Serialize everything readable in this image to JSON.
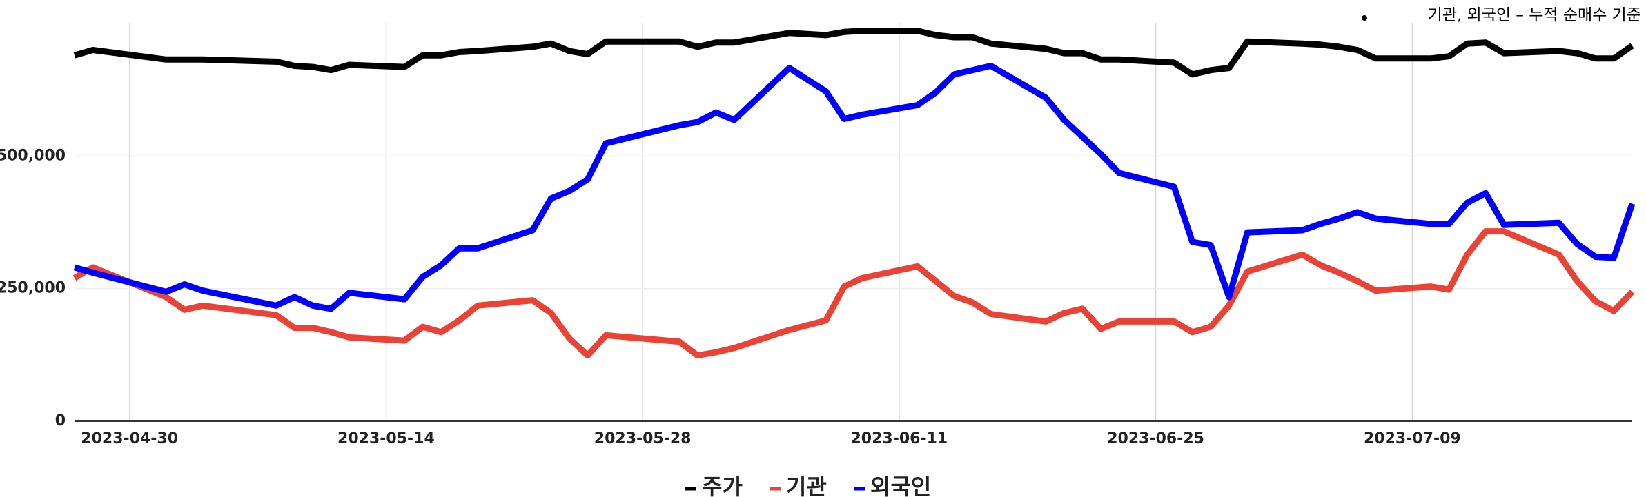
{
  "chart_data": {
    "type": "line",
    "note": "기관, 외국인 – 누적 순매수 기준",
    "x": [
      "2023-04-27",
      "2023-04-28",
      "2023-05-02",
      "2023-05-03",
      "2023-05-04",
      "2023-05-08",
      "2023-05-09",
      "2023-05-10",
      "2023-05-11",
      "2023-05-12",
      "2023-05-15",
      "2023-05-16",
      "2023-05-17",
      "2023-05-18",
      "2023-05-19",
      "2023-05-22",
      "2023-05-23",
      "2023-05-24",
      "2023-05-25",
      "2023-05-26",
      "2023-05-30",
      "2023-05-31",
      "2023-06-01",
      "2023-06-02",
      "2023-06-05",
      "2023-06-07",
      "2023-06-08",
      "2023-06-09",
      "2023-06-12",
      "2023-06-13",
      "2023-06-14",
      "2023-06-15",
      "2023-06-16",
      "2023-06-19",
      "2023-06-20",
      "2023-06-21",
      "2023-06-22",
      "2023-06-23",
      "2023-06-26",
      "2023-06-27",
      "2023-06-28",
      "2023-06-29",
      "2023-06-30",
      "2023-07-03",
      "2023-07-04",
      "2023-07-05",
      "2023-07-06",
      "2023-07-07",
      "2023-07-10",
      "2023-07-11",
      "2023-07-12",
      "2023-07-13",
      "2023-07-14",
      "2023-07-17",
      "2023-07-18",
      "2023-07-19",
      "2023-07-20",
      "2023-07-21"
    ],
    "series": [
      {
        "name": "주가",
        "color": "#000000",
        "values": [
          690000,
          700000,
          682000,
          682000,
          682000,
          678000,
          670000,
          668000,
          662000,
          672000,
          668000,
          690000,
          690000,
          696000,
          698000,
          706000,
          712000,
          698000,
          692000,
          716000,
          716000,
          706000,
          714000,
          714000,
          732000,
          728000,
          734000,
          736000,
          736000,
          728000,
          724000,
          724000,
          712000,
          702000,
          694000,
          694000,
          682000,
          682000,
          676000,
          654000,
          662000,
          666000,
          716000,
          712000,
          710000,
          706000,
          700000,
          684000,
          684000,
          688000,
          712000,
          714000,
          694000,
          698000,
          694000,
          684000,
          684000,
          708000
        ]
      },
      {
        "name": "기관",
        "color": "#ea4335",
        "values": [
          270000,
          290000,
          234000,
          210000,
          218000,
          200000,
          176000,
          176000,
          168000,
          158000,
          152000,
          178000,
          168000,
          190000,
          218000,
          228000,
          204000,
          156000,
          124000,
          162000,
          150000,
          124000,
          130000,
          138000,
          172000,
          190000,
          254000,
          270000,
          292000,
          264000,
          236000,
          224000,
          202000,
          188000,
          204000,
          212000,
          174000,
          188000,
          188000,
          168000,
          178000,
          218000,
          282000,
          314000,
          294000,
          280000,
          264000,
          246000,
          254000,
          248000,
          314000,
          358000,
          358000,
          314000,
          264000,
          226000,
          208000,
          244000
        ]
      },
      {
        "name": "외국인",
        "color": "#0000ff",
        "values": [
          290000,
          280000,
          244000,
          258000,
          246000,
          218000,
          234000,
          218000,
          212000,
          242000,
          230000,
          272000,
          294000,
          326000,
          326000,
          360000,
          420000,
          434000,
          456000,
          524000,
          558000,
          564000,
          582000,
          568000,
          666000,
          622000,
          570000,
          578000,
          596000,
          620000,
          654000,
          662000,
          670000,
          610000,
          568000,
          536000,
          504000,
          468000,
          442000,
          338000,
          332000,
          234000,
          356000,
          360000,
          372000,
          382000,
          394000,
          382000,
          372000,
          372000,
          412000,
          430000,
          370000,
          374000,
          334000,
          310000,
          308000,
          410000
        ]
      }
    ],
    "xlim": [
      "2023-04-27",
      "2023-07-21"
    ],
    "xticks": [
      "2023-04-30",
      "2023-05-14",
      "2023-05-28",
      "2023-06-11",
      "2023-06-25",
      "2023-07-09"
    ],
    "ylim": [
      0,
      750000
    ],
    "yticks": [
      0,
      {
        "value": 250000,
        "label": "250,000"
      },
      {
        "value": 500000,
        "label": "500,000"
      }
    ],
    "grid": true
  }
}
